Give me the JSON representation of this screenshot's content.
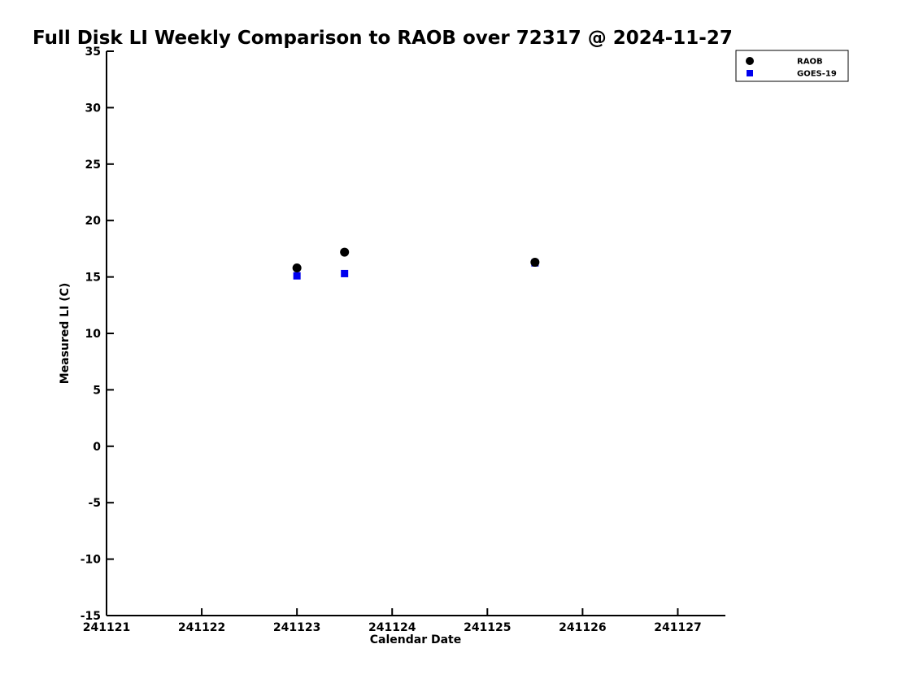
{
  "title": "Full Disk LI Weekly Comparison to RAOB over 72317 @ 2024-11-27",
  "chart_data": {
    "type": "scatter",
    "title": "Full Disk LI Weekly Comparison to RAOB over 72317 @ 2024-11-27",
    "xlabel": "Calendar Date",
    "ylabel": "Measured LI (C)",
    "xlim": [
      241121,
      241127.5
    ],
    "ylim": [
      -15,
      35
    ],
    "xticks": [
      241121,
      241122,
      241123,
      241124,
      241125,
      241126,
      241127
    ],
    "yticks": [
      -15,
      -10,
      -5,
      0,
      5,
      10,
      15,
      20,
      25,
      30,
      35
    ],
    "grid": false,
    "legend_position": "top-right",
    "series": [
      {
        "name": "RAOB",
        "marker": "circle",
        "color": "#000000",
        "points": [
          [
            241123.0,
            15.8
          ],
          [
            241123.5,
            17.2
          ],
          [
            241125.5,
            16.3
          ]
        ]
      },
      {
        "name": "GOES-19",
        "marker": "square",
        "color": "#0000ee",
        "points": [
          [
            241123.0,
            15.1
          ],
          [
            241123.5,
            15.3
          ],
          [
            241125.5,
            16.25
          ]
        ]
      }
    ]
  },
  "colors": {
    "raob": "#000000",
    "goes19": "#0000ee",
    "axis": "#000000",
    "background": "#ffffff"
  }
}
